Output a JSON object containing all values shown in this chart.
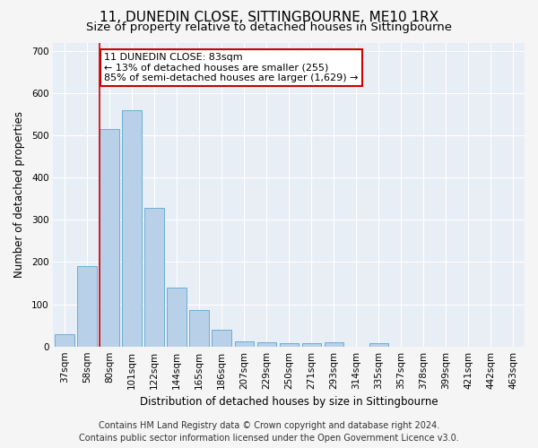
{
  "title": "11, DUNEDIN CLOSE, SITTINGBOURNE, ME10 1RX",
  "subtitle": "Size of property relative to detached houses in Sittingbourne",
  "xlabel": "Distribution of detached houses by size in Sittingbourne",
  "ylabel": "Number of detached properties",
  "footer_line1": "Contains HM Land Registry data © Crown copyright and database right 2024.",
  "footer_line2": "Contains public sector information licensed under the Open Government Licence v3.0.",
  "categories": [
    "37sqm",
    "58sqm",
    "80sqm",
    "101sqm",
    "122sqm",
    "144sqm",
    "165sqm",
    "186sqm",
    "207sqm",
    "229sqm",
    "250sqm",
    "271sqm",
    "293sqm",
    "314sqm",
    "335sqm",
    "357sqm",
    "378sqm",
    "399sqm",
    "421sqm",
    "442sqm",
    "463sqm"
  ],
  "values": [
    30,
    190,
    515,
    560,
    328,
    140,
    87,
    40,
    13,
    10,
    8,
    8,
    10,
    0,
    7,
    0,
    0,
    0,
    0,
    0,
    0
  ],
  "bar_color": "#b8d0e8",
  "bar_edge_color": "#6aaed6",
  "highlight_line_color": "#cc0000",
  "vline_label": "11 DUNEDIN CLOSE: 83sqm",
  "annotation_line1": "← 13% of detached houses are smaller (255)",
  "annotation_line2": "85% of semi-detached houses are larger (1,629) →",
  "annotation_box_facecolor": "#ffffff",
  "annotation_box_edgecolor": "#cc0000",
  "ylim": [
    0,
    720
  ],
  "yticks": [
    0,
    100,
    200,
    300,
    400,
    500,
    600,
    700
  ],
  "plot_bg_color": "#e8eef5",
  "fig_bg_color": "#f5f5f5",
  "grid_color": "#ffffff",
  "title_fontsize": 11,
  "subtitle_fontsize": 9.5,
  "axis_label_fontsize": 8.5,
  "tick_fontsize": 7.5,
  "annotation_fontsize": 8,
  "footer_fontsize": 7
}
